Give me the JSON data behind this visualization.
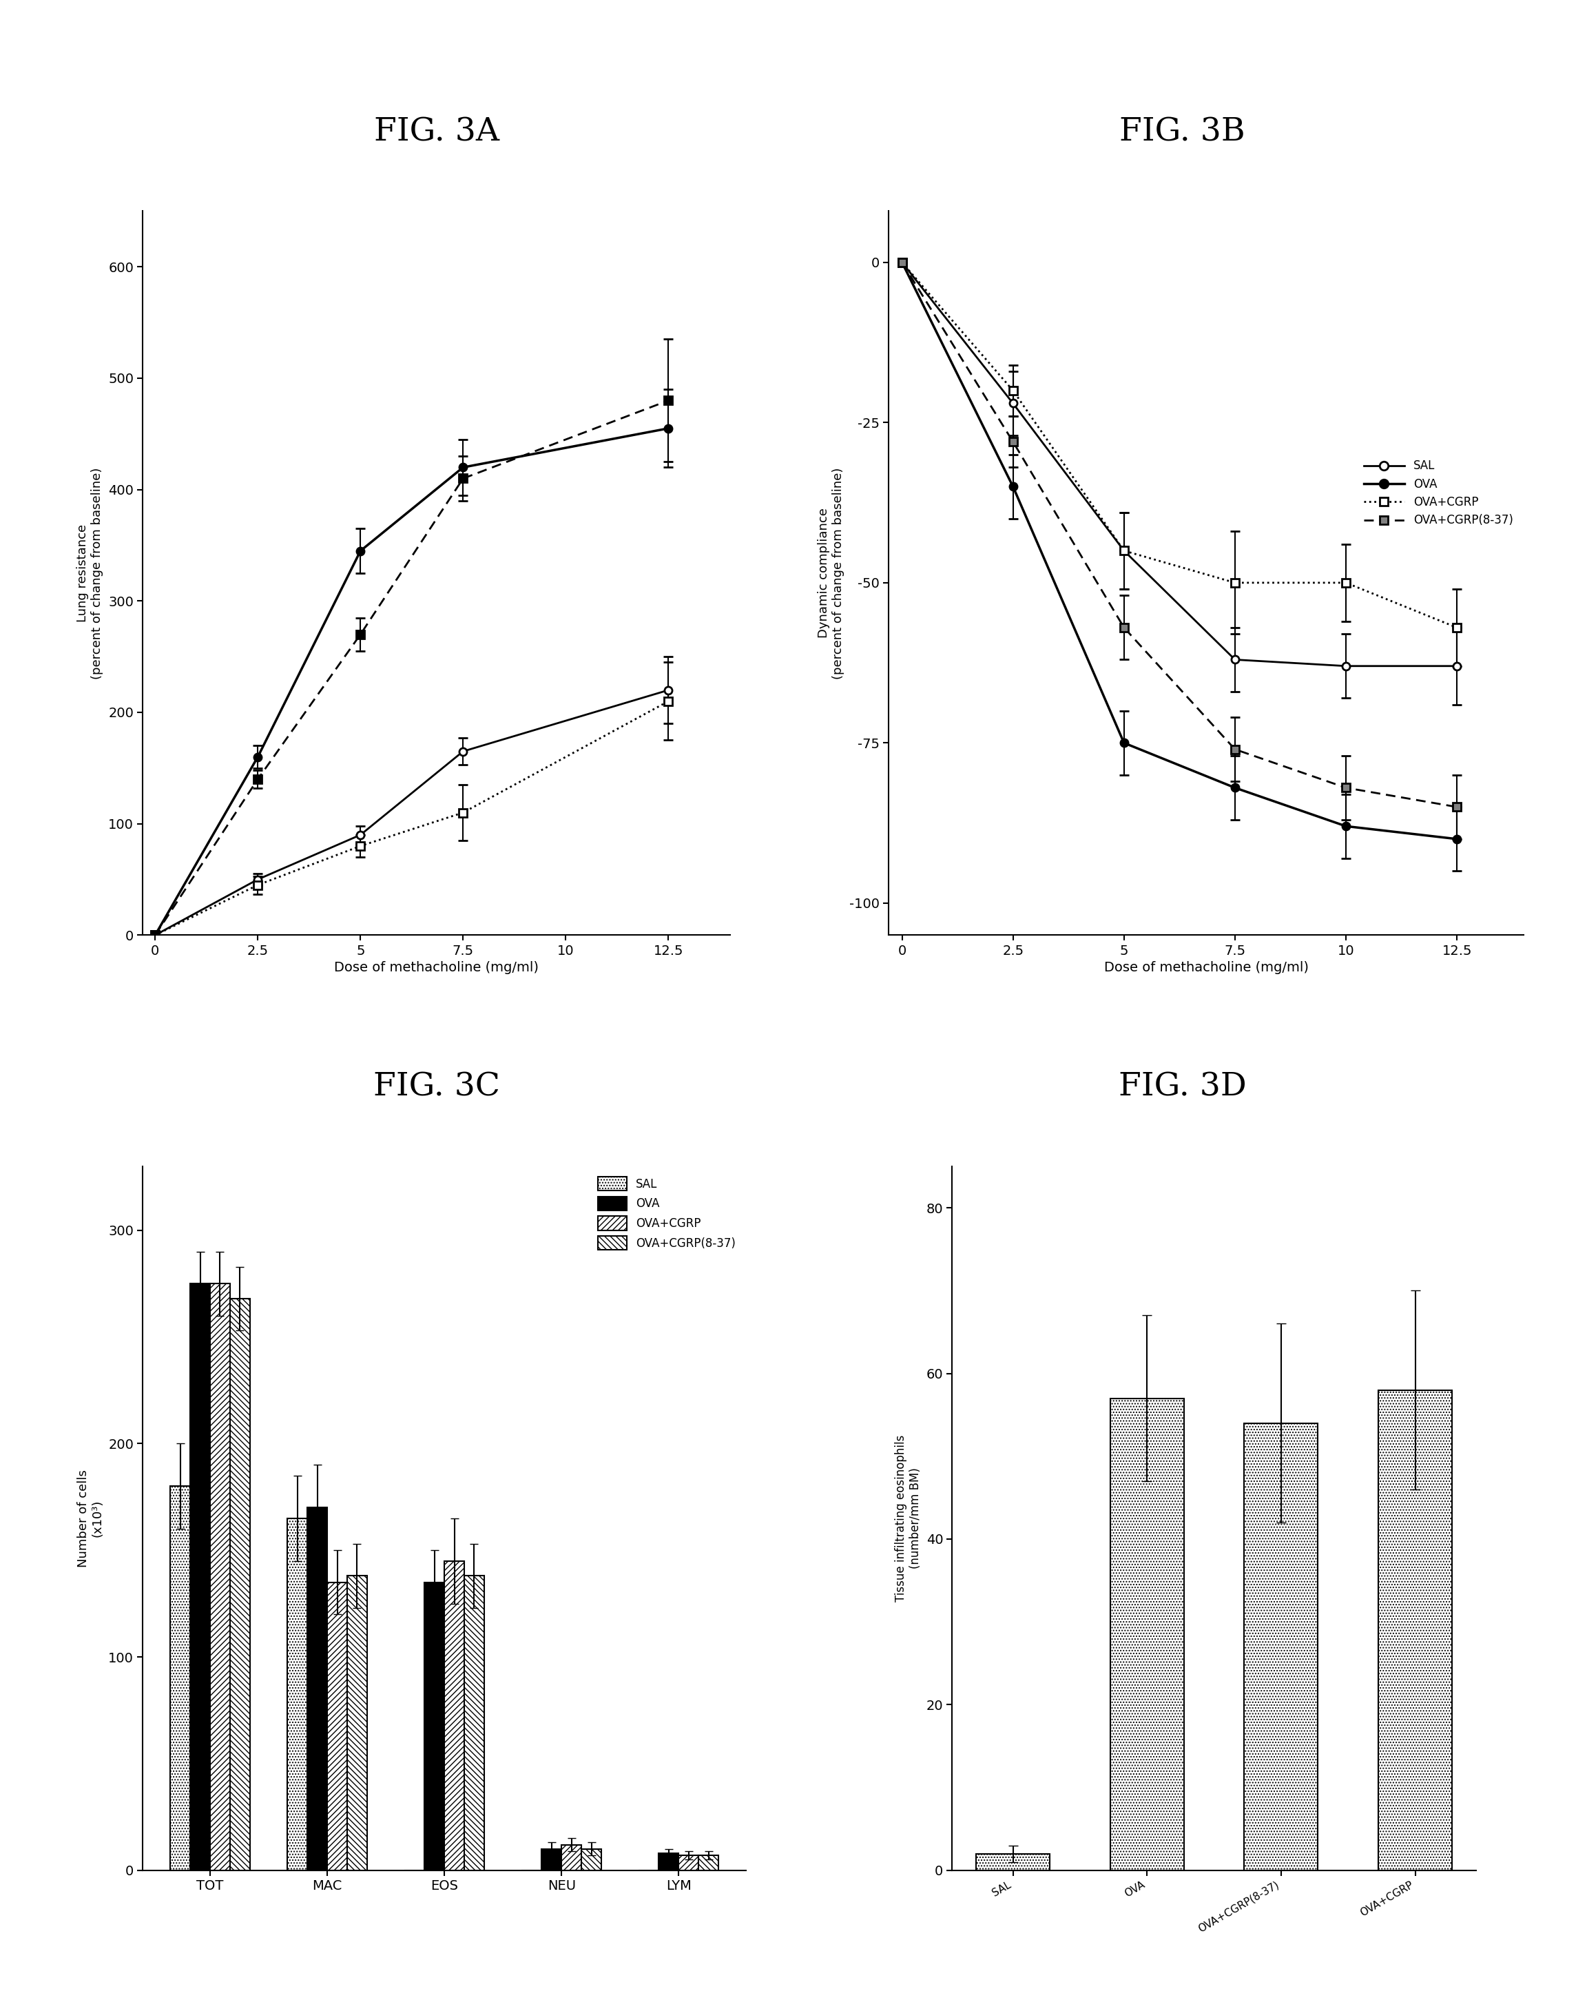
{
  "fig3a": {
    "title": "FIG. 3A",
    "xlabel": "Dose of methacholine (mg/ml)",
    "ylabel": "Lung resistance\n(percent of change from baseline)",
    "x": [
      0,
      2.5,
      5,
      7.5,
      12.5
    ],
    "SAL": [
      0,
      50,
      90,
      165,
      220
    ],
    "SAL_err": [
      0,
      5,
      8,
      12,
      30
    ],
    "OVA": [
      0,
      160,
      345,
      420,
      455
    ],
    "OVA_err": [
      0,
      10,
      20,
      25,
      35
    ],
    "OVA_CGRP": [
      0,
      45,
      80,
      110,
      210
    ],
    "OVA_CGRP_err": [
      0,
      8,
      10,
      25,
      35
    ],
    "OVA_CGRP837": [
      0,
      140,
      270,
      410,
      480
    ],
    "OVA_CGRP837_err": [
      0,
      8,
      15,
      20,
      55
    ],
    "ylim": [
      0,
      650
    ],
    "yticks": [
      0,
      100,
      200,
      300,
      400,
      500,
      600
    ]
  },
  "fig3b": {
    "title": "FIG. 3B",
    "xlabel": "Dose of methacholine (mg/ml)",
    "ylabel": "Dynamic compliance\n(percent of change from baseline)",
    "x": [
      0,
      2.5,
      5,
      7.5,
      10,
      12.5
    ],
    "SAL": [
      0,
      -22,
      -45,
      -62,
      -63,
      -63
    ],
    "SAL_err": [
      0,
      5,
      6,
      5,
      5,
      6
    ],
    "OVA": [
      0,
      -35,
      -75,
      -82,
      -88,
      -90
    ],
    "OVA_err": [
      0,
      5,
      5,
      5,
      5,
      5
    ],
    "OVA_CGRP": [
      0,
      -20,
      -45,
      -50,
      -50,
      -57
    ],
    "OVA_CGRP_err": [
      0,
      4,
      6,
      8,
      6,
      6
    ],
    "OVA_CGRP837": [
      0,
      -28,
      -57,
      -76,
      -82,
      -85
    ],
    "OVA_CGRP837_err": [
      0,
      4,
      5,
      5,
      5,
      5
    ],
    "ylim": [
      -105,
      8
    ],
    "yticks": [
      0,
      -25,
      -50,
      -75,
      -100
    ]
  },
  "fig3c": {
    "title": "FIG. 3C",
    "xlabel": "",
    "ylabel": "Number of cells\n(x10³)",
    "categories": [
      "TOT",
      "MAC",
      "EOS",
      "NEU",
      "LYM"
    ],
    "SAL": [
      180,
      165,
      0,
      0,
      0
    ],
    "SAL_err": [
      20,
      20,
      0,
      0,
      0
    ],
    "OVA": [
      275,
      170,
      135,
      10,
      8
    ],
    "OVA_err": [
      15,
      20,
      15,
      3,
      2
    ],
    "OVA_CGRP": [
      275,
      135,
      145,
      12,
      7
    ],
    "OVA_CGRP_err": [
      15,
      15,
      20,
      3,
      2
    ],
    "OVA_CGRP837": [
      268,
      138,
      138,
      10,
      7
    ],
    "OVA_CGRP837_err": [
      15,
      15,
      15,
      3,
      2
    ],
    "ylim": [
      0,
      330
    ],
    "yticks": [
      0,
      100,
      200,
      300
    ]
  },
  "fig3d": {
    "title": "FIG. 3D",
    "xlabel": "",
    "ylabel": "Tissue infiltrating eosinophils\n(number/mm BM)",
    "categories": [
      "SAL",
      "OVA",
      "OVA+CGRP(8-37)",
      "OVA+CGRP"
    ],
    "values": [
      2,
      57,
      54,
      58
    ],
    "errors": [
      1,
      10,
      12,
      12
    ],
    "ylim": [
      0,
      85
    ],
    "yticks": [
      0,
      20,
      40,
      60,
      80
    ]
  }
}
